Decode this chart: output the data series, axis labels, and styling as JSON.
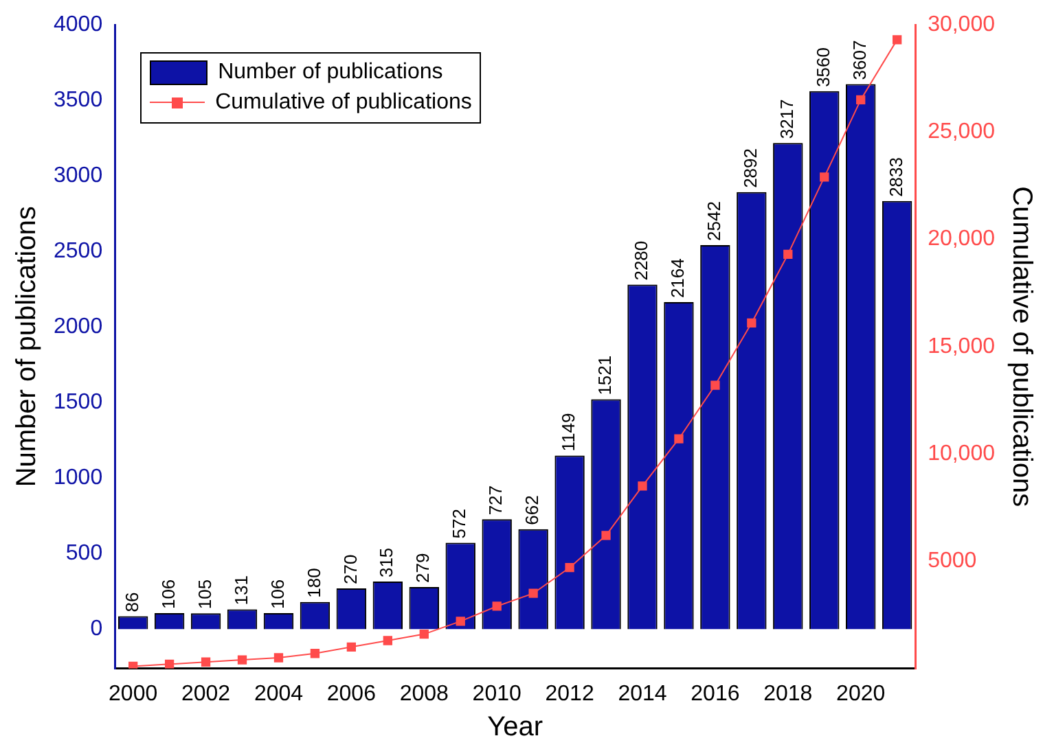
{
  "chart_data": {
    "type": "bar",
    "xlabel": "Year",
    "ylabel": "Number of publications",
    "y2label": "Cumulative of publications",
    "categories": [
      "2000",
      null,
      "2002",
      null,
      "2004",
      null,
      "2006",
      null,
      "2008",
      null,
      "2010",
      null,
      "2012",
      null,
      "2014",
      null,
      "2016",
      null,
      "2018",
      null,
      "2020",
      null
    ],
    "series": [
      {
        "name": "Number of publications",
        "color": "#0d12a6",
        "values": [
          86,
          106,
          105,
          131,
          106,
          180,
          270,
          315,
          279,
          572,
          727,
          662,
          1149,
          1521,
          2280,
          2164,
          2542,
          2892,
          3217,
          3560,
          3607,
          2833
        ],
        "value_labels": [
          "86",
          "106",
          "105",
          "131",
          "106",
          "180",
          "270",
          "315",
          "279",
          "572",
          "727",
          "662",
          "1149",
          "1521",
          "2280",
          "2164",
          "2542",
          "2892",
          "3217",
          "3560",
          "3607",
          "2833"
        ]
      },
      {
        "name": "Cumulative of publications",
        "type": "line",
        "axis": "y2",
        "color": "#ff4b4b",
        "marker": "square",
        "values": [
          100,
          200,
          300,
          400,
          500,
          700,
          1000,
          1300,
          1600,
          2200,
          2900,
          3500,
          4700,
          6200,
          8500,
          10700,
          13200,
          16100,
          19300,
          22900,
          26500,
          29300
        ]
      }
    ],
    "ylim": [
      -260,
      4000
    ],
    "yticks": [
      0,
      500,
      1000,
      1500,
      2000,
      2500,
      3000,
      3500,
      4000
    ],
    "y2lim": [
      0,
      30000
    ],
    "y2ticks": [
      {
        "value": 5000,
        "label": "5000"
      },
      {
        "value": 10000,
        "label": "10,000"
      },
      {
        "value": 15000,
        "label": "15,000"
      },
      {
        "value": 20000,
        "label": "20,000"
      },
      {
        "value": 25000,
        "label": "25,000"
      },
      {
        "value": 30000,
        "label": "30,000"
      }
    ],
    "legend": "top left",
    "grid": false
  }
}
